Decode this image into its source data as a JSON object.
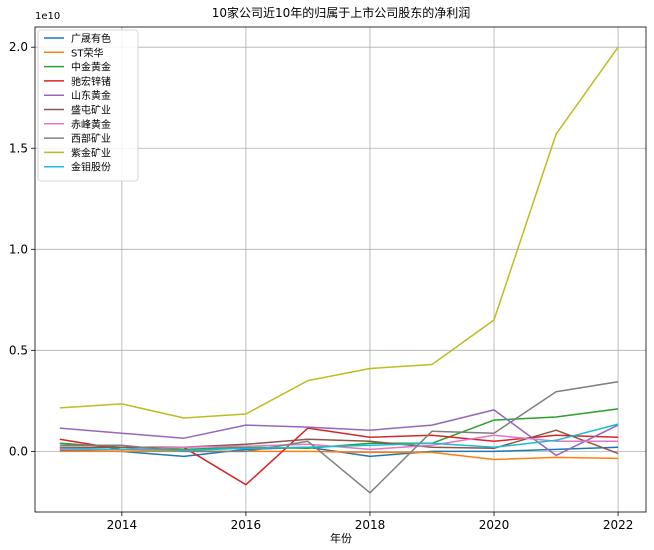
{
  "chart_data": {
    "type": "line",
    "title": "10家公司近10年的归属于上市公司股东的净利润",
    "xlabel": "年份",
    "ylabel": "",
    "offset_text": "1e10",
    "x": [
      2013,
      2014,
      2015,
      2016,
      2017,
      2018,
      2019,
      2020,
      2021,
      2022
    ],
    "xlim": [
      2012.6,
      2022.45
    ],
    "ylim": [
      -3000000000.0,
      21000000000.0
    ],
    "x_ticks": [
      2014,
      2016,
      2018,
      2020,
      2022
    ],
    "y_ticks": [
      0,
      5000000000.0,
      10000000000.0,
      15000000000.0,
      20000000000.0
    ],
    "x_tick_labels": [
      "2014",
      "2016",
      "2018",
      "2020",
      "2022"
    ],
    "y_tick_labels": [
      "0.0",
      "0.5",
      "1.0",
      "1.5",
      "2.0"
    ],
    "grid": true,
    "legend_position": "top-left",
    "series": [
      {
        "name": "广晟有色",
        "color": "#1f77b4",
        "values": [
          50000000.0,
          0.0,
          -250000000.0,
          100000000.0,
          200000000.0,
          -250000000.0,
          0.0,
          0.0,
          100000000.0,
          200000000.0
        ]
      },
      {
        "name": "ST荣华",
        "color": "#ff7f0e",
        "values": [
          0.0,
          0.0,
          0.0,
          0.0,
          0.0,
          -50000000.0,
          -50000000.0,
          -400000000.0,
          -300000000.0,
          -350000000.0
        ]
      },
      {
        "name": "中金黄金",
        "color": "#2ca02c",
        "values": [
          400000000.0,
          200000000.0,
          100000000.0,
          200000000.0,
          150000000.0,
          400000000.0,
          400000000.0,
          1550000000.0,
          1700000000.0,
          2100000000.0
        ]
      },
      {
        "name": "驰宏锌锗",
        "color": "#d62728",
        "values": [
          600000000.0,
          100000000.0,
          200000000.0,
          -1650000000.0,
          1150000000.0,
          700000000.0,
          800000000.0,
          500000000.0,
          800000000.0,
          700000000.0
        ]
      },
      {
        "name": "山东黄金",
        "color": "#9467bd",
        "values": [
          1150000000.0,
          900000000.0,
          650000000.0,
          1300000000.0,
          1200000000.0,
          1050000000.0,
          1300000000.0,
          2050000000.0,
          -200000000.0,
          1300000000.0
        ]
      },
      {
        "name": "盛屯矿业",
        "color": "#8c564b",
        "values": [
          200000000.0,
          200000000.0,
          200000000.0,
          350000000.0,
          600000000.0,
          500000000.0,
          200000000.0,
          150000000.0,
          1050000000.0,
          -100000000.0
        ]
      },
      {
        "name": "赤峰黄金",
        "color": "#e377c2",
        "values": [
          100000000.0,
          100000000.0,
          200000000.0,
          250000000.0,
          350000000.0,
          100000000.0,
          300000000.0,
          800000000.0,
          500000000.0,
          500000000.0
        ]
      },
      {
        "name": "西部矿业",
        "color": "#7f7f7f",
        "values": [
          300000000.0,
          300000000.0,
          0.0,
          0.0,
          500000000.0,
          -2050000000.0,
          1000000000.0,
          900000000.0,
          2950000000.0,
          3450000000.0
        ]
      },
      {
        "name": "紫金矿业",
        "color": "#bcbd22",
        "values": [
          2150000000.0,
          2350000000.0,
          1650000000.0,
          1850000000.0,
          3500000000.0,
          4100000000.0,
          4300000000.0,
          6500000000.0,
          15700000000.0,
          20000000000.0
        ]
      },
      {
        "name": "金钼股份",
        "color": "#17becf",
        "values": [
          150000000.0,
          100000000.0,
          50000000.0,
          150000000.0,
          200000000.0,
          300000000.0,
          400000000.0,
          200000000.0,
          550000000.0,
          1350000000.0
        ]
      }
    ]
  }
}
